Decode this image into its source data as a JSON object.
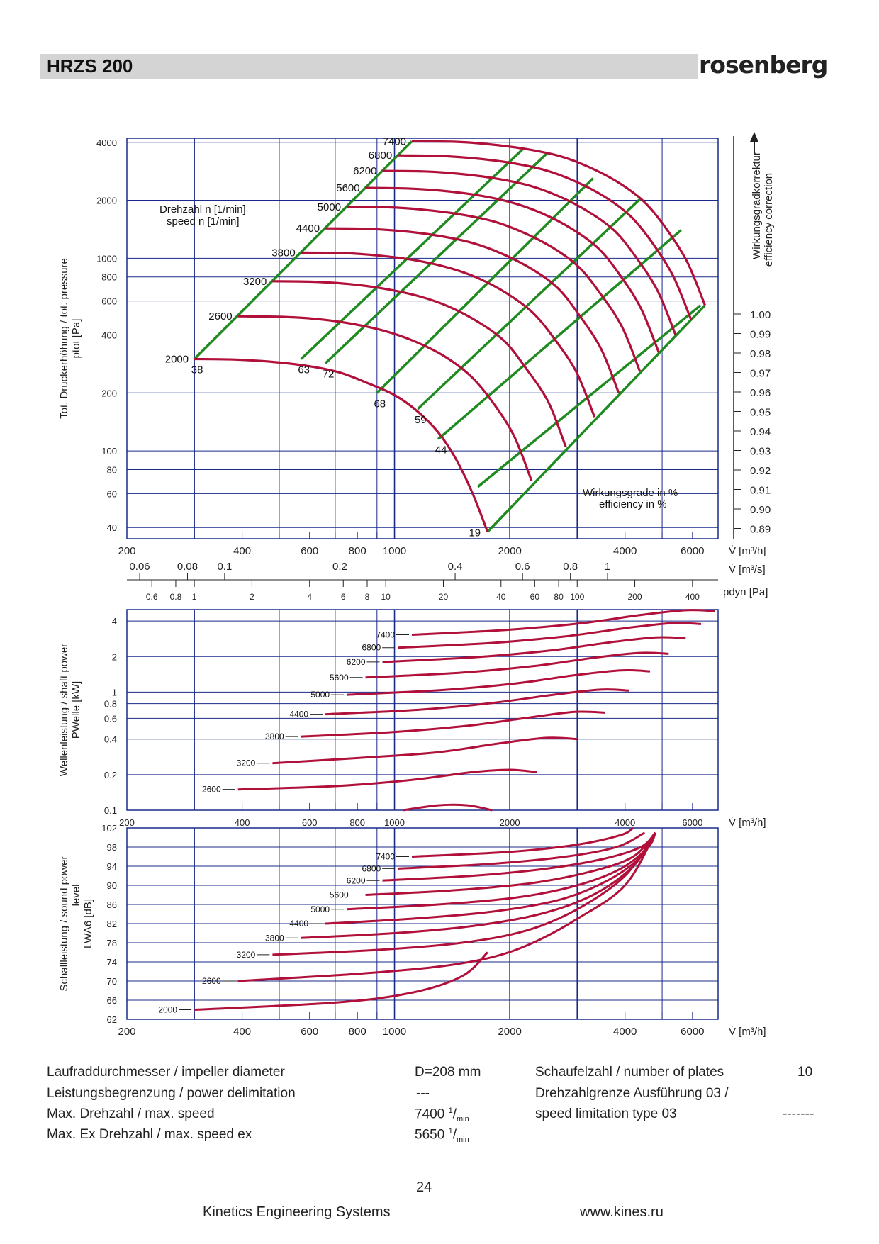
{
  "header": {
    "title": "HRZS 200",
    "logo": "rosenberg"
  },
  "colors": {
    "curve": "#b0103a",
    "efficiency_line": "#1f8a1f",
    "grid": "#1a2a8a",
    "header_bar": "#d4d4d4"
  },
  "chart_data": [
    {
      "type": "line",
      "ylabel_line1": "Tot. Druckerhöhung / tot. pressure",
      "ylabel_line2": "ptot [Pa]",
      "right_label_line1": "Wirkungsgradkorrektur",
      "right_label_line2": "efficiency correction",
      "speed_label_line1": "Drehzahl n [1/min]",
      "speed_label_line2": "speed n [1/min]",
      "efficiency_label_line1": "Wirkungsgrade in %",
      "efficiency_label_line2": "efficiency in %",
      "x_scale": "log",
      "y_scale": "log",
      "xlim": [
        200,
        7000
      ],
      "ylim": [
        35,
        4200
      ],
      "x_unit": "V̇ [m³/h]",
      "x_ticks": [
        "200",
        "400",
        "600",
        "800",
        "1000",
        "2000",
        "4000",
        "6000"
      ],
      "y_ticks": [
        "40",
        "60",
        "80",
        "100",
        "200",
        "400",
        "600",
        "800",
        "1000",
        "2000",
        "4000"
      ],
      "x_ticks_m3s": [
        "0.06",
        "0.08",
        "0.1",
        "0.2",
        "0.4",
        "0.6",
        "0.8",
        "1"
      ],
      "x_unit_m3s": "V̇ [m³/s]",
      "pdyn_ticks": [
        "0.6",
        "0.8",
        "1",
        "2",
        "4",
        "6",
        "8",
        "10",
        "20",
        "40",
        "60",
        "80",
        "100",
        "200",
        "400"
      ],
      "pdyn_unit": "pdyn [Pa]",
      "efficiency_correction_ticks": [
        "1.00",
        "0.99",
        "0.98",
        "0.97",
        "0.96",
        "0.95",
        "0.94",
        "0.93",
        "0.92",
        "0.91",
        "0.90",
        "0.89"
      ],
      "series": [
        {
          "name": "2000",
          "x": [
            300,
            380,
            480,
            600,
            720,
            850,
            1000,
            1150,
            1300,
            1450,
            1600,
            1750
          ],
          "y": [
            300,
            298,
            290,
            275,
            255,
            225,
            195,
            160,
            125,
            90,
            60,
            38
          ]
        },
        {
          "name": "2600",
          "x": [
            390,
            500,
            620,
            760,
            940,
            1130,
            1350,
            1580,
            1800,
            2050,
            2280
          ],
          "y": [
            500,
            497,
            485,
            460,
            420,
            370,
            310,
            245,
            180,
            120,
            70
          ]
        },
        {
          "name": "3200",
          "x": [
            480,
            610,
            760,
            940,
            1160,
            1390,
            1660,
            1940,
            2200,
            2520,
            2800
          ],
          "y": [
            760,
            755,
            735,
            695,
            635,
            560,
            465,
            370,
            270,
            180,
            105
          ]
        },
        {
          "name": "3800",
          "x": [
            570,
            730,
            900,
            1120,
            1380,
            1650,
            1970,
            2300,
            2620,
            2990,
            3330
          ],
          "y": [
            1070,
            1065,
            1035,
            980,
            895,
            790,
            655,
            520,
            380,
            255,
            150
          ]
        },
        {
          "name": "4400",
          "x": [
            660,
            840,
            1040,
            1300,
            1600,
            1910,
            2280,
            2670,
            3030,
            3460,
            3850
          ],
          "y": [
            1430,
            1422,
            1385,
            1310,
            1200,
            1055,
            880,
            700,
            510,
            340,
            200
          ]
        },
        {
          "name": "5000",
          "x": [
            750,
            960,
            1180,
            1470,
            1820,
            2170,
            2590,
            3030,
            3440,
            3930,
            4370
          ],
          "y": [
            1850,
            1840,
            1790,
            1695,
            1550,
            1360,
            1135,
            900,
            660,
            440,
            260
          ]
        },
        {
          "name": "5600",
          "x": [
            840,
            1070,
            1320,
            1650,
            2030,
            2430,
            2900,
            3400,
            3860,
            4400,
            4900
          ],
          "y": [
            2320,
            2305,
            2245,
            2125,
            1945,
            1710,
            1425,
            1130,
            830,
            550,
            325
          ]
        },
        {
          "name": "6200",
          "x": [
            930,
            1190,
            1460,
            1820,
            2250,
            2690,
            3210,
            3760,
            4270,
            4870,
            5420
          ],
          "y": [
            2840,
            2825,
            2750,
            2605,
            2385,
            2095,
            1745,
            1385,
            1015,
            675,
            400
          ]
        },
        {
          "name": "6800",
          "x": [
            1020,
            1300,
            1600,
            2000,
            2470,
            2950,
            3520,
            4120,
            4690,
            5340,
            5950
          ],
          "y": [
            3420,
            3400,
            3310,
            3135,
            2870,
            2520,
            2100,
            1665,
            1220,
            810,
            480
          ]
        },
        {
          "name": "7400",
          "x": [
            1110,
            1420,
            1740,
            2170,
            2690,
            3210,
            3830,
            4480,
            5100,
            5810,
            6470
          ],
          "y": [
            4050,
            4030,
            3920,
            3710,
            3400,
            2985,
            2485,
            1970,
            1445,
            960,
            570
          ]
        }
      ],
      "efficiency_lines": [
        {
          "name": "38",
          "x": [
            300,
            1110
          ],
          "y": [
            300,
            4050
          ]
        },
        {
          "name": "63",
          "x": [
            570,
            2170
          ],
          "y": [
            300,
            3710
          ]
        },
        {
          "name": "72",
          "x": [
            660,
            2500
          ],
          "y": [
            285,
            3500
          ]
        },
        {
          "name": "68",
          "x": [
            900,
            3300
          ],
          "y": [
            200,
            2600
          ]
        },
        {
          "name": "59",
          "x": [
            1150,
            4400
          ],
          "y": [
            165,
            2050
          ]
        },
        {
          "name": "44",
          "x": [
            1300,
            5600
          ],
          "y": [
            115,
            1400
          ]
        },
        {
          "name": "",
          "x": [
            1650,
            6300
          ],
          "y": [
            65,
            570
          ]
        },
        {
          "name": "19",
          "x": [
            1750,
            6470
          ],
          "y": [
            38,
            570
          ]
        }
      ],
      "efficiency_labels": [
        "38",
        "63",
        "72",
        "68",
        "59",
        "44",
        "19"
      ],
      "speed_labels": [
        "2000",
        "2600",
        "3200",
        "3800",
        "4400",
        "5000",
        "5600",
        "6200",
        "6800",
        "7400"
      ]
    },
    {
      "type": "line",
      "ylabel_line1": "Wellenleistung / shaft power",
      "ylabel_line2": "PWelle [kW]",
      "x_scale": "log",
      "y_scale": "log",
      "xlim": [
        200,
        7000
      ],
      "ylim": [
        0.1,
        5
      ],
      "x_unit": "V̇ [m³/h]",
      "x_ticks": [
        "200",
        "400",
        "600",
        "800",
        "1000",
        "2000",
        "4000",
        "6000"
      ],
      "y_ticks": [
        "0.1",
        "0.2",
        "0.4",
        "0.6",
        "0.8",
        "1",
        "2",
        "4"
      ],
      "series": [
        {
          "name": "2000",
          "x": [
            1050,
            1300,
            1550,
            1800
          ],
          "y": [
            0.1,
            0.11,
            0.11,
            0.1
          ]
        },
        {
          "name": "2600",
          "x": [
            390,
            700,
            1100,
            1600,
            2000,
            2350
          ],
          "y": [
            0.15,
            0.16,
            0.18,
            0.21,
            0.22,
            0.21
          ]
        },
        {
          "name": "3200",
          "x": [
            480,
            850,
            1300,
            1900,
            2500,
            3000
          ],
          "y": [
            0.25,
            0.28,
            0.31,
            0.37,
            0.41,
            0.4
          ]
        },
        {
          "name": "3800",
          "x": [
            570,
            1000,
            1560,
            2250,
            2950,
            3550
          ],
          "y": [
            0.42,
            0.46,
            0.52,
            0.61,
            0.68,
            0.67
          ]
        },
        {
          "name": "4400",
          "x": [
            660,
            1160,
            1800,
            2600,
            3450,
            4100
          ],
          "y": [
            0.65,
            0.71,
            0.81,
            0.95,
            1.05,
            1.03
          ]
        },
        {
          "name": "5000",
          "x": [
            750,
            1320,
            2050,
            2950,
            3900,
            4650
          ],
          "y": [
            0.95,
            1.04,
            1.18,
            1.39,
            1.53,
            1.5
          ]
        },
        {
          "name": "5600",
          "x": [
            840,
            1480,
            2300,
            3300,
            4370,
            5200
          ],
          "y": [
            1.33,
            1.46,
            1.66,
            1.95,
            2.15,
            2.11
          ]
        },
        {
          "name": "6200",
          "x": [
            930,
            1640,
            2550,
            3650,
            4830,
            5760
          ],
          "y": [
            1.8,
            1.98,
            2.25,
            2.64,
            2.91,
            2.86
          ]
        },
        {
          "name": "6800",
          "x": [
            1020,
            1800,
            2800,
            4000,
            5300,
            6320
          ],
          "y": [
            2.38,
            2.61,
            2.97,
            3.48,
            3.84,
            3.77
          ]
        },
        {
          "name": "7400",
          "x": [
            1110,
            1950,
            3050,
            4350,
            5770,
            6880
          ],
          "y": [
            3.06,
            3.36,
            3.82,
            4.48,
            4.94,
            4.85
          ]
        }
      ],
      "speed_labels": [
        "2600",
        "3200",
        "3800",
        "4400",
        "5000",
        "5600",
        "6200",
        "6800",
        "7400"
      ]
    },
    {
      "type": "line",
      "ylabel_line1": "Schallleistung / sound power",
      "ylabel_line1b": "level",
      "ylabel_line2": "LWA6 [dB]",
      "x_scale": "log",
      "y_scale": "linear",
      "xlim": [
        200,
        7000
      ],
      "ylim": [
        62,
        102
      ],
      "x_unit": "V̇ [m³/h]",
      "x_ticks": [
        "200",
        "400",
        "600",
        "800",
        "1000",
        "2000",
        "4000",
        "6000"
      ],
      "y_ticks": [
        "62",
        "66",
        "70",
        "74",
        "78",
        "82",
        "86",
        "90",
        "94",
        "98",
        "102"
      ],
      "series": [
        {
          "name": "2000",
          "x": [
            300,
            700,
            1100,
            1500,
            1750
          ],
          "y": [
            64,
            65.5,
            67.5,
            71,
            76
          ]
        },
        {
          "name": "2600",
          "x": [
            390,
            800,
            1300,
            1800,
            2300,
            3000,
            4000,
            4800
          ],
          "y": [
            70,
            71.5,
            73,
            75,
            78,
            83,
            90,
            101
          ]
        },
        {
          "name": "3200",
          "x": [
            480,
            900,
            1500,
            2200,
            3000,
            4000,
            4800
          ],
          "y": [
            75.5,
            76.5,
            78,
            80.5,
            85,
            92,
            101
          ]
        },
        {
          "name": "3800",
          "x": [
            570,
            1000,
            1600,
            2400,
            3300,
            4200,
            4800
          ],
          "y": [
            79,
            80,
            81.5,
            84,
            88,
            94,
            101
          ]
        },
        {
          "name": "4400",
          "x": [
            660,
            1100,
            1800,
            2700,
            3600,
            4400,
            4800
          ],
          "y": [
            82,
            83,
            84.5,
            87,
            91,
            96,
            101
          ]
        },
        {
          "name": "5000",
          "x": [
            750,
            1300,
            2100,
            3000,
            3900,
            4600,
            4800
          ],
          "y": [
            85,
            86,
            87.5,
            90,
            93.5,
            98,
            101
          ]
        },
        {
          "name": "5600",
          "x": [
            840,
            1450,
            2300,
            3300,
            4200,
            4800
          ],
          "y": [
            88,
            89,
            90.5,
            93,
            96,
            101
          ]
        },
        {
          "name": "6200",
          "x": [
            930,
            1600,
            2500,
            3500,
            4400,
            4800
          ],
          "y": [
            91,
            92,
            93.5,
            95.5,
            98,
            101
          ]
        },
        {
          "name": "6800",
          "x": [
            1020,
            1800,
            2800,
            3800,
            4500
          ],
          "y": [
            93.5,
            94.5,
            96,
            98,
            101
          ]
        },
        {
          "name": "7400",
          "x": [
            1110,
            2000,
            3000,
            3900,
            4200
          ],
          "y": [
            96,
            97,
            98.5,
            100.5,
            102
          ]
        }
      ],
      "speed_labels": [
        "2000",
        "2600",
        "3200",
        "3800",
        "4400",
        "5000",
        "5600",
        "6200",
        "6800",
        "7400"
      ]
    }
  ],
  "specs": {
    "rows": [
      {
        "label": "Laufraddurchmesser / impeller diameter",
        "value": "D=208 mm"
      },
      {
        "label": "Leistungsbegrenzung / power delimitation",
        "value": "---"
      },
      {
        "label": "Max. Drehzahl / max. speed",
        "value": "7400",
        "unit_sup": "1",
        "unit_sub": "min"
      },
      {
        "label": "Max. Ex Drehzahl / max. speed ex",
        "value": "5650",
        "unit_sup": "1",
        "unit_sub": "min"
      }
    ],
    "right_rows": [
      {
        "label": "Schaufelzahl / number of plates",
        "value": "10"
      },
      {
        "label": "Drehzahlgrenze Ausführung 03 /",
        "value": ""
      },
      {
        "label": "speed limitation type 03",
        "value": "-------"
      }
    ]
  },
  "footer": {
    "page": "24",
    "company": "Kinetics Engineering Systems",
    "website": "www.kines.ru"
  }
}
